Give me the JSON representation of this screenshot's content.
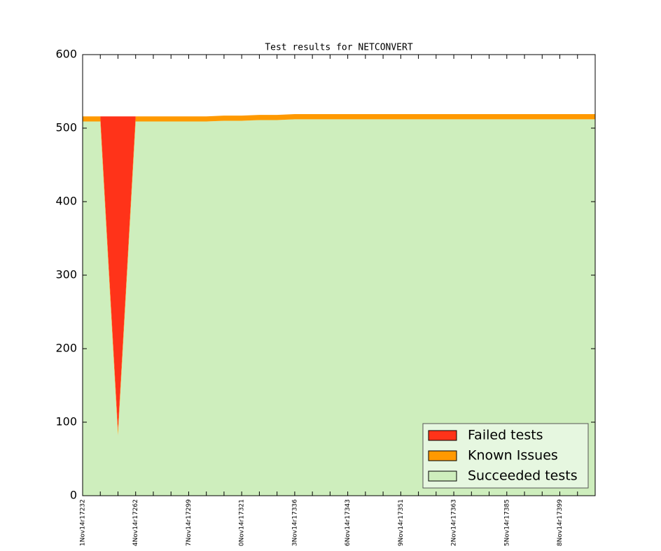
{
  "chart_data": {
    "type": "stacked_area",
    "title": "Test results for NETCONVERT",
    "categories": [
      "1Nov14r17232",
      null,
      null,
      "4Nov14r17262",
      null,
      null,
      "7Nov14r17299",
      null,
      null,
      "0Nov14r17321",
      null,
      null,
      "3Nov14r17336",
      null,
      null,
      "6Nov14r17343",
      null,
      null,
      "9Nov14r17351",
      null,
      null,
      "2Nov14r17363",
      null,
      null,
      "5Nov14r17385",
      null,
      null,
      "8Nov14r17399",
      null,
      null
    ],
    "series": [
      {
        "name": "Succeeded tests",
        "color": "#ceeebd",
        "values": [
          509,
          509,
          82,
          509,
          509,
          509,
          509,
          509,
          510,
          510,
          511,
          511,
          512,
          512,
          512,
          512,
          512,
          512,
          512,
          512,
          512,
          512,
          512,
          512,
          512,
          512,
          512,
          512,
          512,
          512
        ]
      },
      {
        "name": "Known Issues",
        "color": "#ff9900",
        "values": [
          7,
          7,
          7,
          7,
          7,
          7,
          7,
          7,
          7,
          7,
          7,
          7,
          7,
          7,
          7,
          7,
          7,
          7,
          7,
          7,
          7,
          7,
          7,
          7,
          7,
          7,
          7,
          7,
          7,
          7
        ]
      },
      {
        "name": "Failed tests",
        "color": "#ff3319",
        "values": [
          0,
          0,
          427,
          0,
          0,
          0,
          0,
          0,
          0,
          0,
          0,
          0,
          0,
          0,
          0,
          0,
          0,
          0,
          0,
          0,
          0,
          0,
          0,
          0,
          0,
          0,
          0,
          0,
          0,
          0
        ]
      }
    ],
    "ylim": [
      0,
      600
    ],
    "yticks": [
      0,
      100,
      200,
      300,
      400,
      500,
      600
    ],
    "legend": "lower right"
  }
}
